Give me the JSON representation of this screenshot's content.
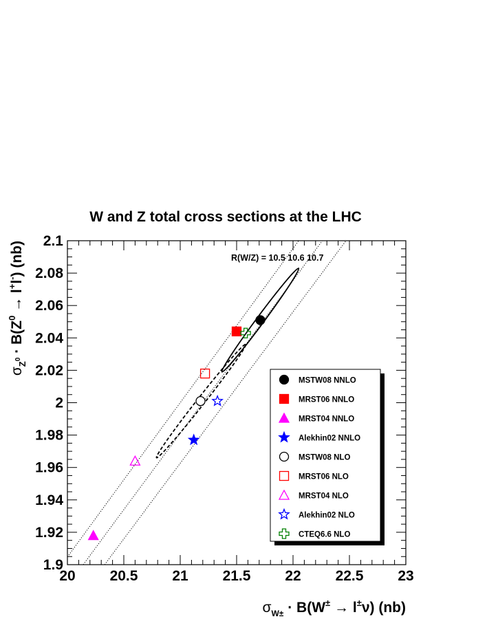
{
  "chart_data": {
    "type": "scatter",
    "title": "W and Z total cross sections at the LHC",
    "xlim": [
      20,
      23
    ],
    "ylim": [
      1.9,
      2.1
    ],
    "x_ticks": [
      "20",
      "20.5",
      "21",
      "21.5",
      "22",
      "22.5",
      "23"
    ],
    "y_ticks": [
      "1.9",
      "1.92",
      "1.94",
      "1.96",
      "1.98",
      "2",
      "2.02",
      "2.04",
      "2.06",
      "2.08",
      "2.1"
    ],
    "xlabel": {
      "sigma": "σ",
      "sigma_sub": "W±",
      "rest": " · B(W",
      "sup1": "±",
      "arrow": " → l",
      "sup2": "±",
      "end": "ν)  (nb)"
    },
    "ylabel": {
      "sigma": "σ",
      "sigma_sub": "Z",
      "sigma_subsup": "0",
      "rest": " · B(Z",
      "sup1": "0",
      "arrow": " → l",
      "sup2": "+",
      "mid": "l",
      "sup3": "-",
      "end": ")  (nb)"
    },
    "ratio_label": "R(W/Z) = 10.5  10.6  10.7",
    "ratio_lines": [
      10.5,
      10.6,
      10.7
    ],
    "ellipses": [
      {
        "name": "MSTW08 NNLO",
        "style": "solid",
        "center": [
          21.71,
          2.051
        ],
        "end_a": [
          21.37,
          2.019
        ],
        "end_b": [
          22.05,
          2.083
        ]
      },
      {
        "name": "MSTW08 NLO",
        "style": "dashed",
        "center": [
          21.18,
          2.001
        ],
        "end_a": [
          20.79,
          1.966
        ],
        "end_b": [
          21.58,
          2.036
        ]
      }
    ],
    "series": [
      {
        "name": "MSTW08 NNLO",
        "marker": "circle-filled",
        "color": "#000000",
        "x": 21.71,
        "y": 2.051
      },
      {
        "name": "MRST06 NNLO",
        "marker": "square-filled",
        "color": "#ff0000",
        "x": 21.5,
        "y": 2.044
      },
      {
        "name": "MRST04 NNLO",
        "marker": "triangle-filled",
        "color": "#ff00ff",
        "x": 20.23,
        "y": 1.918
      },
      {
        "name": "Alekhin02 NNLO",
        "marker": "star-filled",
        "color": "#0000ff",
        "x": 21.12,
        "y": 1.977
      },
      {
        "name": "MSTW08 NLO",
        "marker": "circle-open",
        "color": "#000000",
        "x": 21.18,
        "y": 2.001
      },
      {
        "name": "MRST06 NLO",
        "marker": "square-open",
        "color": "#ff0000",
        "x": 21.22,
        "y": 2.018
      },
      {
        "name": "MRST04 NLO",
        "marker": "triangle-open",
        "color": "#ff00ff",
        "x": 20.6,
        "y": 1.964
      },
      {
        "name": "Alekhin02 NLO",
        "marker": "star-open",
        "color": "#0000ff",
        "x": 21.33,
        "y": 2.001
      },
      {
        "name": "CTEQ6.6 NLO",
        "marker": "cross-open",
        "color": "#008000",
        "x": 21.58,
        "y": 2.043
      }
    ],
    "legend_placement": "lower-right inside plot",
    "grid": false
  }
}
